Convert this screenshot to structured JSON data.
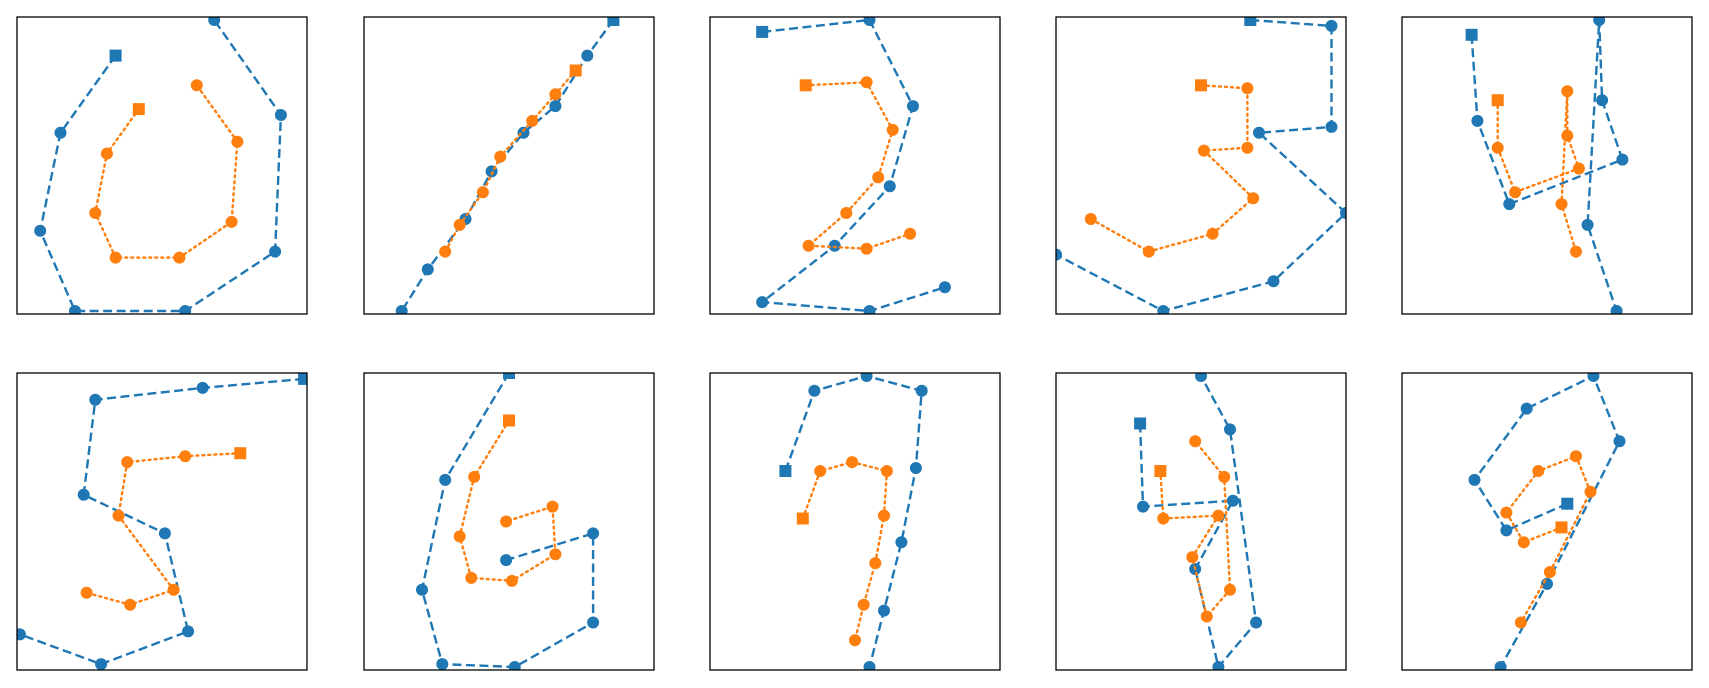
{
  "colors": {
    "series_blue": "#1f77b4",
    "series_orange": "#ff7f0e",
    "axes_frame": "#000000",
    "background": "#ffffff"
  },
  "chart_data": [
    {
      "type": "line",
      "xlim": [
        0,
        1
      ],
      "ylim": [
        0,
        1
      ],
      "grid": false,
      "ticks": false,
      "series": [
        {
          "color": "#1f77b4",
          "style": "dashed",
          "start_marker": "square",
          "points": [
            [
              0.34,
              0.87
            ],
            [
              0.15,
              0.61
            ],
            [
              0.08,
              0.28
            ],
            [
              0.2,
              0.01
            ],
            [
              0.58,
              0.01
            ],
            [
              0.89,
              0.21
            ],
            [
              0.91,
              0.67
            ],
            [
              0.68,
              0.99
            ]
          ]
        },
        {
          "color": "#ff7f0e",
          "style": "dotted",
          "start_marker": "square",
          "points": [
            [
              0.42,
              0.69
            ],
            [
              0.31,
              0.54
            ],
            [
              0.27,
              0.34
            ],
            [
              0.34,
              0.19
            ],
            [
              0.56,
              0.19
            ],
            [
              0.74,
              0.31
            ],
            [
              0.76,
              0.58
            ],
            [
              0.62,
              0.77
            ]
          ]
        }
      ]
    },
    {
      "type": "line",
      "xlim": [
        0,
        1
      ],
      "ylim": [
        0,
        1
      ],
      "grid": false,
      "ticks": false,
      "series": [
        {
          "color": "#1f77b4",
          "style": "dashed",
          "start_marker": "square",
          "points": [
            [
              0.86,
              0.99
            ],
            [
              0.77,
              0.87
            ],
            [
              0.66,
              0.7
            ],
            [
              0.55,
              0.61
            ],
            [
              0.44,
              0.48
            ],
            [
              0.35,
              0.32
            ],
            [
              0.22,
              0.15
            ],
            [
              0.13,
              0.01
            ]
          ]
        },
        {
          "color": "#ff7f0e",
          "style": "dotted",
          "start_marker": "square",
          "points": [
            [
              0.73,
              0.82
            ],
            [
              0.66,
              0.74
            ],
            [
              0.58,
              0.65
            ],
            [
              0.47,
              0.53
            ],
            [
              0.41,
              0.41
            ],
            [
              0.33,
              0.3
            ],
            [
              0.28,
              0.21
            ]
          ]
        }
      ]
    },
    {
      "type": "line",
      "xlim": [
        0,
        1
      ],
      "ylim": [
        0,
        1
      ],
      "grid": false,
      "ticks": false,
      "series": [
        {
          "color": "#1f77b4",
          "style": "dashed",
          "start_marker": "square",
          "points": [
            [
              0.18,
              0.95
            ],
            [
              0.55,
              0.99
            ],
            [
              0.7,
              0.7
            ],
            [
              0.62,
              0.43
            ],
            [
              0.43,
              0.23
            ],
            [
              0.18,
              0.04
            ],
            [
              0.55,
              0.01
            ],
            [
              0.81,
              0.09
            ]
          ]
        },
        {
          "color": "#ff7f0e",
          "style": "dotted",
          "start_marker": "square",
          "points": [
            [
              0.33,
              0.77
            ],
            [
              0.54,
              0.78
            ],
            [
              0.63,
              0.62
            ],
            [
              0.58,
              0.46
            ],
            [
              0.47,
              0.34
            ],
            [
              0.34,
              0.23
            ],
            [
              0.54,
              0.22
            ],
            [
              0.69,
              0.27
            ]
          ]
        }
      ]
    },
    {
      "type": "line",
      "xlim": [
        0,
        1
      ],
      "ylim": [
        0,
        1
      ],
      "grid": false,
      "ticks": false,
      "series": [
        {
          "color": "#1f77b4",
          "style": "dashed",
          "start_marker": "square",
          "points": [
            [
              0.67,
              0.99
            ],
            [
              0.95,
              0.97
            ],
            [
              0.95,
              0.63
            ],
            [
              0.7,
              0.61
            ],
            [
              1.0,
              0.34
            ],
            [
              0.75,
              0.11
            ],
            [
              0.37,
              0.01
            ],
            [
              0.0,
              0.2
            ]
          ]
        },
        {
          "color": "#ff7f0e",
          "style": "dotted",
          "start_marker": "square",
          "points": [
            [
              0.5,
              0.77
            ],
            [
              0.66,
              0.76
            ],
            [
              0.66,
              0.56
            ],
            [
              0.51,
              0.55
            ],
            [
              0.68,
              0.39
            ],
            [
              0.54,
              0.27
            ],
            [
              0.32,
              0.21
            ],
            [
              0.12,
              0.32
            ]
          ]
        }
      ]
    },
    {
      "type": "line",
      "xlim": [
        0,
        1
      ],
      "ylim": [
        0,
        1
      ],
      "grid": false,
      "ticks": false,
      "series": [
        {
          "color": "#1f77b4",
          "style": "dashed",
          "start_marker": "square",
          "points": [
            [
              0.24,
              0.94
            ],
            [
              0.26,
              0.65
            ],
            [
              0.37,
              0.37
            ],
            [
              0.76,
              0.52
            ],
            [
              0.69,
              0.72
            ],
            [
              0.68,
              0.99
            ],
            [
              0.64,
              0.3
            ],
            [
              0.74,
              0.01
            ]
          ]
        },
        {
          "color": "#ff7f0e",
          "style": "dotted",
          "start_marker": "square",
          "points": [
            [
              0.33,
              0.72
            ],
            [
              0.33,
              0.56
            ],
            [
              0.39,
              0.41
            ],
            [
              0.61,
              0.49
            ],
            [
              0.57,
              0.6
            ],
            [
              0.57,
              0.75
            ],
            [
              0.55,
              0.37
            ],
            [
              0.6,
              0.21
            ]
          ]
        }
      ]
    },
    {
      "type": "line",
      "xlim": [
        0,
        1
      ],
      "ylim": [
        0,
        1
      ],
      "grid": false,
      "ticks": false,
      "series": [
        {
          "color": "#1f77b4",
          "style": "dashed",
          "start_marker": "square",
          "points": [
            [
              0.99,
              0.98
            ],
            [
              0.64,
              0.95
            ],
            [
              0.27,
              0.91
            ],
            [
              0.23,
              0.59
            ],
            [
              0.51,
              0.46
            ],
            [
              0.59,
              0.13
            ],
            [
              0.29,
              0.02
            ],
            [
              0.01,
              0.12
            ]
          ]
        },
        {
          "color": "#ff7f0e",
          "style": "dotted",
          "start_marker": "square",
          "points": [
            [
              0.77,
              0.73
            ],
            [
              0.58,
              0.72
            ],
            [
              0.38,
              0.7
            ],
            [
              0.35,
              0.52
            ],
            [
              0.54,
              0.27
            ],
            [
              0.39,
              0.22
            ],
            [
              0.24,
              0.26
            ]
          ]
        }
      ]
    },
    {
      "type": "line",
      "xlim": [
        0,
        1
      ],
      "ylim": [
        0,
        1
      ],
      "grid": false,
      "ticks": false,
      "series": [
        {
          "color": "#1f77b4",
          "style": "dashed",
          "start_marker": "square",
          "points": [
            [
              0.5,
              1.0
            ],
            [
              0.28,
              0.64
            ],
            [
              0.2,
              0.27
            ],
            [
              0.27,
              0.02
            ],
            [
              0.52,
              0.01
            ],
            [
              0.79,
              0.16
            ],
            [
              0.79,
              0.46
            ],
            [
              0.49,
              0.37
            ]
          ]
        },
        {
          "color": "#ff7f0e",
          "style": "dotted",
          "start_marker": "square",
          "points": [
            [
              0.5,
              0.84
            ],
            [
              0.38,
              0.65
            ],
            [
              0.33,
              0.45
            ],
            [
              0.37,
              0.31
            ],
            [
              0.51,
              0.3
            ],
            [
              0.66,
              0.39
            ],
            [
              0.65,
              0.55
            ],
            [
              0.49,
              0.5
            ]
          ]
        }
      ]
    },
    {
      "type": "line",
      "xlim": [
        0,
        1
      ],
      "ylim": [
        0,
        1
      ],
      "grid": false,
      "ticks": false,
      "series": [
        {
          "color": "#1f77b4",
          "style": "dashed",
          "start_marker": "square",
          "points": [
            [
              0.26,
              0.67
            ],
            [
              0.36,
              0.94
            ],
            [
              0.54,
              0.99
            ],
            [
              0.73,
              0.94
            ],
            [
              0.71,
              0.68
            ],
            [
              0.66,
              0.43
            ],
            [
              0.6,
              0.2
            ],
            [
              0.55,
              0.01
            ]
          ]
        },
        {
          "color": "#ff7f0e",
          "style": "dotted",
          "start_marker": "square",
          "points": [
            [
              0.32,
              0.51
            ],
            [
              0.38,
              0.67
            ],
            [
              0.49,
              0.7
            ],
            [
              0.61,
              0.67
            ],
            [
              0.6,
              0.52
            ],
            [
              0.57,
              0.36
            ],
            [
              0.53,
              0.22
            ],
            [
              0.5,
              0.1
            ]
          ]
        }
      ]
    },
    {
      "type": "line",
      "xlim": [
        0,
        1
      ],
      "ylim": [
        0,
        1
      ],
      "grid": false,
      "ticks": false,
      "series": [
        {
          "color": "#1f77b4",
          "style": "dashed",
          "start_marker": "square",
          "points": [
            [
              0.29,
              0.83
            ],
            [
              0.3,
              0.55
            ],
            [
              0.61,
              0.57
            ],
            [
              0.48,
              0.34
            ],
            [
              0.56,
              0.01
            ],
            [
              0.69,
              0.16
            ],
            [
              0.6,
              0.81
            ],
            [
              0.5,
              0.99
            ]
          ]
        },
        {
          "color": "#ff7f0e",
          "style": "dotted",
          "start_marker": "square",
          "points": [
            [
              0.36,
              0.67
            ],
            [
              0.37,
              0.51
            ],
            [
              0.56,
              0.52
            ],
            [
              0.47,
              0.38
            ],
            [
              0.52,
              0.18
            ],
            [
              0.6,
              0.27
            ],
            [
              0.58,
              0.65
            ],
            [
              0.48,
              0.77
            ]
          ]
        }
      ]
    },
    {
      "type": "line",
      "xlim": [
        0,
        1
      ],
      "ylim": [
        0,
        1
      ],
      "grid": false,
      "ticks": false,
      "series": [
        {
          "color": "#1f77b4",
          "style": "dashed",
          "start_marker": "square",
          "points": [
            [
              0.57,
              0.56
            ],
            [
              0.36,
              0.47
            ],
            [
              0.25,
              0.64
            ],
            [
              0.43,
              0.88
            ],
            [
              0.66,
              0.99
            ],
            [
              0.75,
              0.77
            ],
            [
              0.5,
              0.29
            ],
            [
              0.34,
              0.01
            ]
          ]
        },
        {
          "color": "#ff7f0e",
          "style": "dotted",
          "start_marker": "square",
          "points": [
            [
              0.55,
              0.48
            ],
            [
              0.42,
              0.43
            ],
            [
              0.36,
              0.53
            ],
            [
              0.47,
              0.67
            ],
            [
              0.6,
              0.72
            ],
            [
              0.65,
              0.6
            ],
            [
              0.51,
              0.33
            ],
            [
              0.41,
              0.16
            ]
          ]
        }
      ]
    }
  ]
}
